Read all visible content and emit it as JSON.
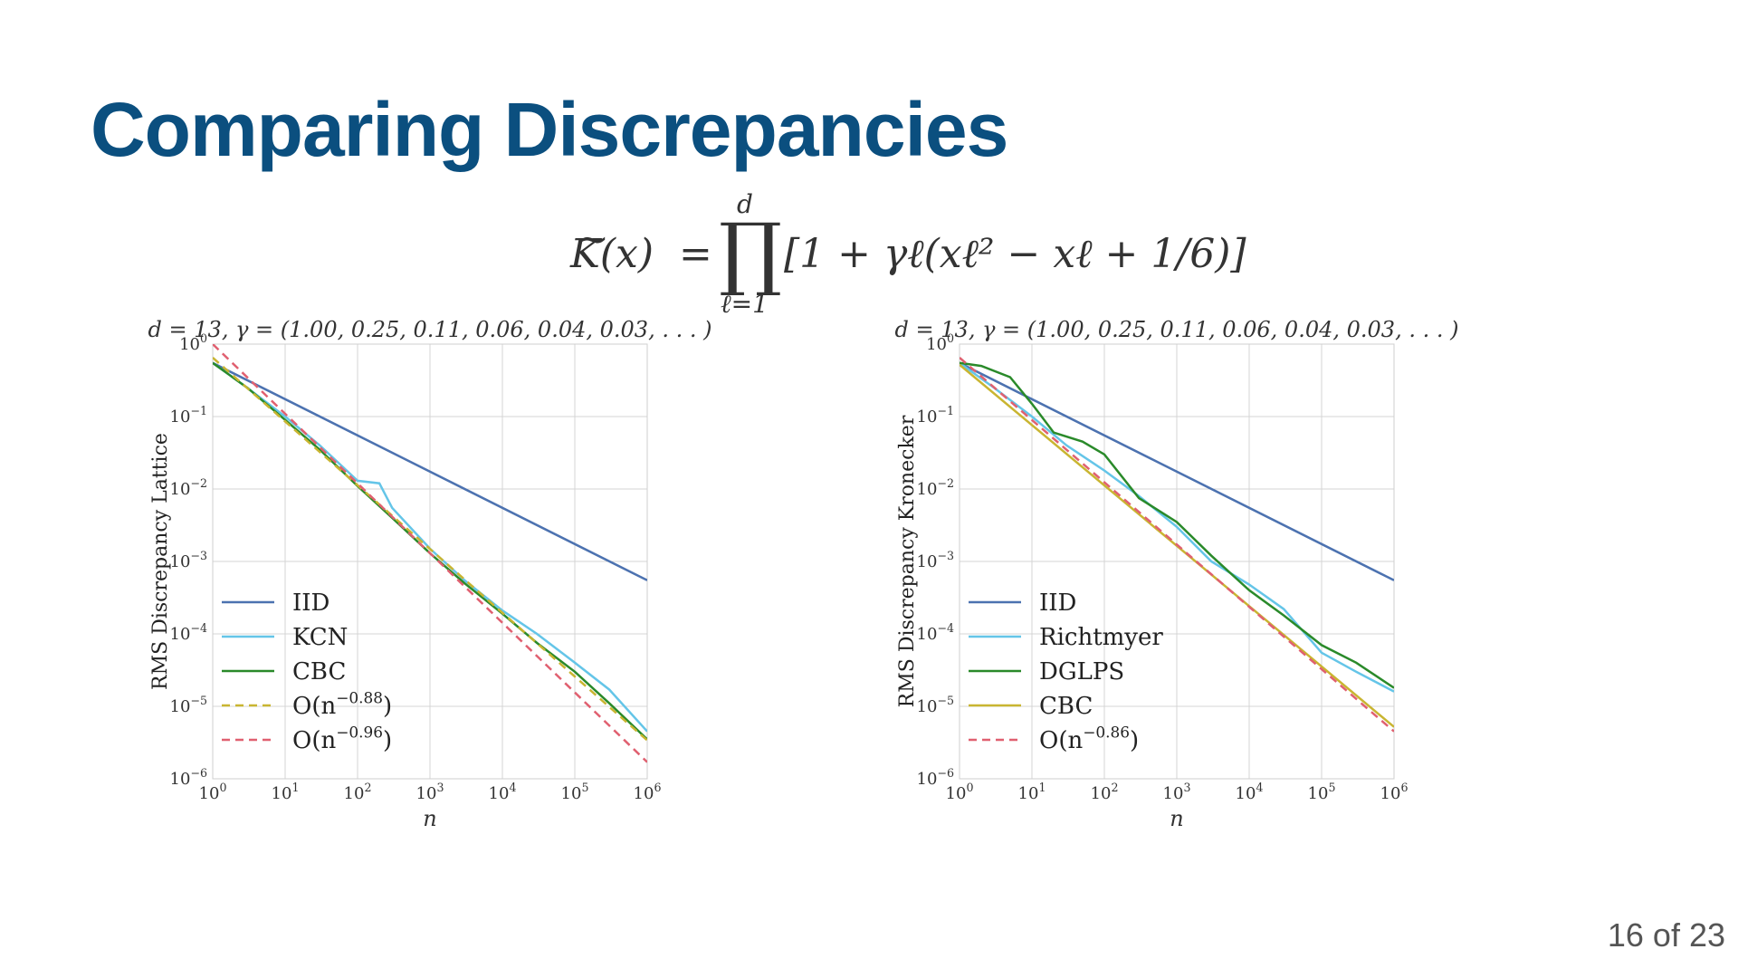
{
  "slide": {
    "title": "Comparing Discrepancies",
    "formula": {
      "lhs": "K(x)",
      "eq": "=",
      "prod": "∏",
      "upper": "d",
      "lower": "ℓ=1",
      "rhs": "[1 + γℓ(xℓ² − xℓ + 1/6)]"
    },
    "page_number": "16 of 23"
  },
  "chart_data": [
    {
      "type": "line",
      "title": "d = 13, γ = (1.00, 0.25, 0.11, 0.06, 0.04, 0.03, . . . )",
      "xlabel": "n",
      "ylabel": "RMS Discrepancy Lattice",
      "xscale": "log",
      "yscale": "log",
      "xlim": [
        1,
        1000000
      ],
      "ylim": [
        1e-06,
        1
      ],
      "x_ticks": [
        "10^0",
        "10^1",
        "10^2",
        "10^3",
        "10^4",
        "10^5",
        "10^6"
      ],
      "y_ticks": [
        "10^0",
        "10^-1",
        "10^-2",
        "10^-3",
        "10^-4",
        "10^-5",
        "10^-6"
      ],
      "grid": true,
      "legend_position": "bottom-left",
      "series": [
        {
          "name": "IID",
          "color": "#4c72b0",
          "style": "solid",
          "x": [
            1,
            1000000
          ],
          "y": [
            0.55,
            0.00055
          ]
        },
        {
          "name": "KCN",
          "color": "#64c5e8",
          "style": "solid",
          "x": [
            1,
            3,
            10,
            30,
            100,
            200,
            300,
            1000,
            3000,
            10000,
            30000,
            100000,
            300000,
            1000000
          ],
          "y": [
            0.55,
            0.25,
            0.1,
            0.04,
            0.013,
            0.012,
            0.0055,
            0.0015,
            0.00055,
            0.00021,
            0.0001,
            4e-05,
            1.7e-05,
            4.5e-06
          ]
        },
        {
          "name": "CBC",
          "color": "#2a8a2a",
          "style": "solid",
          "x": [
            1,
            3,
            10,
            30,
            100,
            300,
            1000,
            3000,
            10000,
            30000,
            100000,
            300000,
            1000000
          ],
          "y": [
            0.55,
            0.25,
            0.09,
            0.035,
            0.011,
            0.004,
            0.0013,
            0.0005,
            0.00019,
            7.5e-05,
            3e-05,
            1.1e-05,
            3.5e-06
          ]
        },
        {
          "name": "O(n^-0.88)",
          "color": "#c9b531",
          "style": "dashed",
          "x": [
            1,
            1000000
          ],
          "y": [
            0.65,
            3.4e-06
          ]
        },
        {
          "name": "O(n^-0.96)",
          "color": "#e06070",
          "style": "dashed",
          "x": [
            1,
            1000000
          ],
          "y": [
            1.0,
            1.7e-06
          ]
        }
      ]
    },
    {
      "type": "line",
      "title": "d = 13, γ = (1.00, 0.25, 0.11, 0.06, 0.04, 0.03, . . . )",
      "xlabel": "n",
      "ylabel": "RMS Discrepancy Kronecker",
      "xscale": "log",
      "yscale": "log",
      "xlim": [
        1,
        1000000
      ],
      "ylim": [
        1e-06,
        1
      ],
      "x_ticks": [
        "10^0",
        "10^1",
        "10^2",
        "10^3",
        "10^4",
        "10^5",
        "10^6"
      ],
      "y_ticks": [
        "10^0",
        "10^-1",
        "10^-2",
        "10^-3",
        "10^-4",
        "10^-5",
        "10^-6"
      ],
      "grid": true,
      "legend_position": "bottom-left",
      "series": [
        {
          "name": "IID",
          "color": "#4c72b0",
          "style": "solid",
          "x": [
            1,
            1000000
          ],
          "y": [
            0.55,
            0.00055
          ]
        },
        {
          "name": "Richtmyer",
          "color": "#64c5e8",
          "style": "solid",
          "x": [
            1,
            3,
            10,
            30,
            100,
            300,
            1000,
            3000,
            10000,
            30000,
            100000,
            300000,
            1000000
          ],
          "y": [
            0.55,
            0.25,
            0.1,
            0.04,
            0.018,
            0.008,
            0.003,
            0.001,
            0.00048,
            0.00022,
            5.5e-05,
            3e-05,
            1.6e-05
          ]
        },
        {
          "name": "DGLPS",
          "color": "#2a8a2a",
          "style": "solid",
          "x": [
            1,
            2,
            5,
            10,
            20,
            50,
            100,
            300,
            1000,
            3000,
            10000,
            30000,
            100000,
            300000,
            1000000
          ],
          "y": [
            0.55,
            0.5,
            0.35,
            0.15,
            0.06,
            0.045,
            0.03,
            0.0075,
            0.0035,
            0.0012,
            0.0004,
            0.00018,
            7e-05,
            4e-05,
            1.8e-05
          ]
        },
        {
          "name": "CBC",
          "color": "#c9b531",
          "style": "solid",
          "x": [
            1,
            1000000
          ],
          "y": [
            0.52,
            5.2e-06
          ]
        },
        {
          "name": "O(n^-0.86)",
          "color": "#e06070",
          "style": "dashed",
          "x": [
            1,
            1000000
          ],
          "y": [
            0.65,
            4.5e-06
          ]
        }
      ]
    }
  ]
}
